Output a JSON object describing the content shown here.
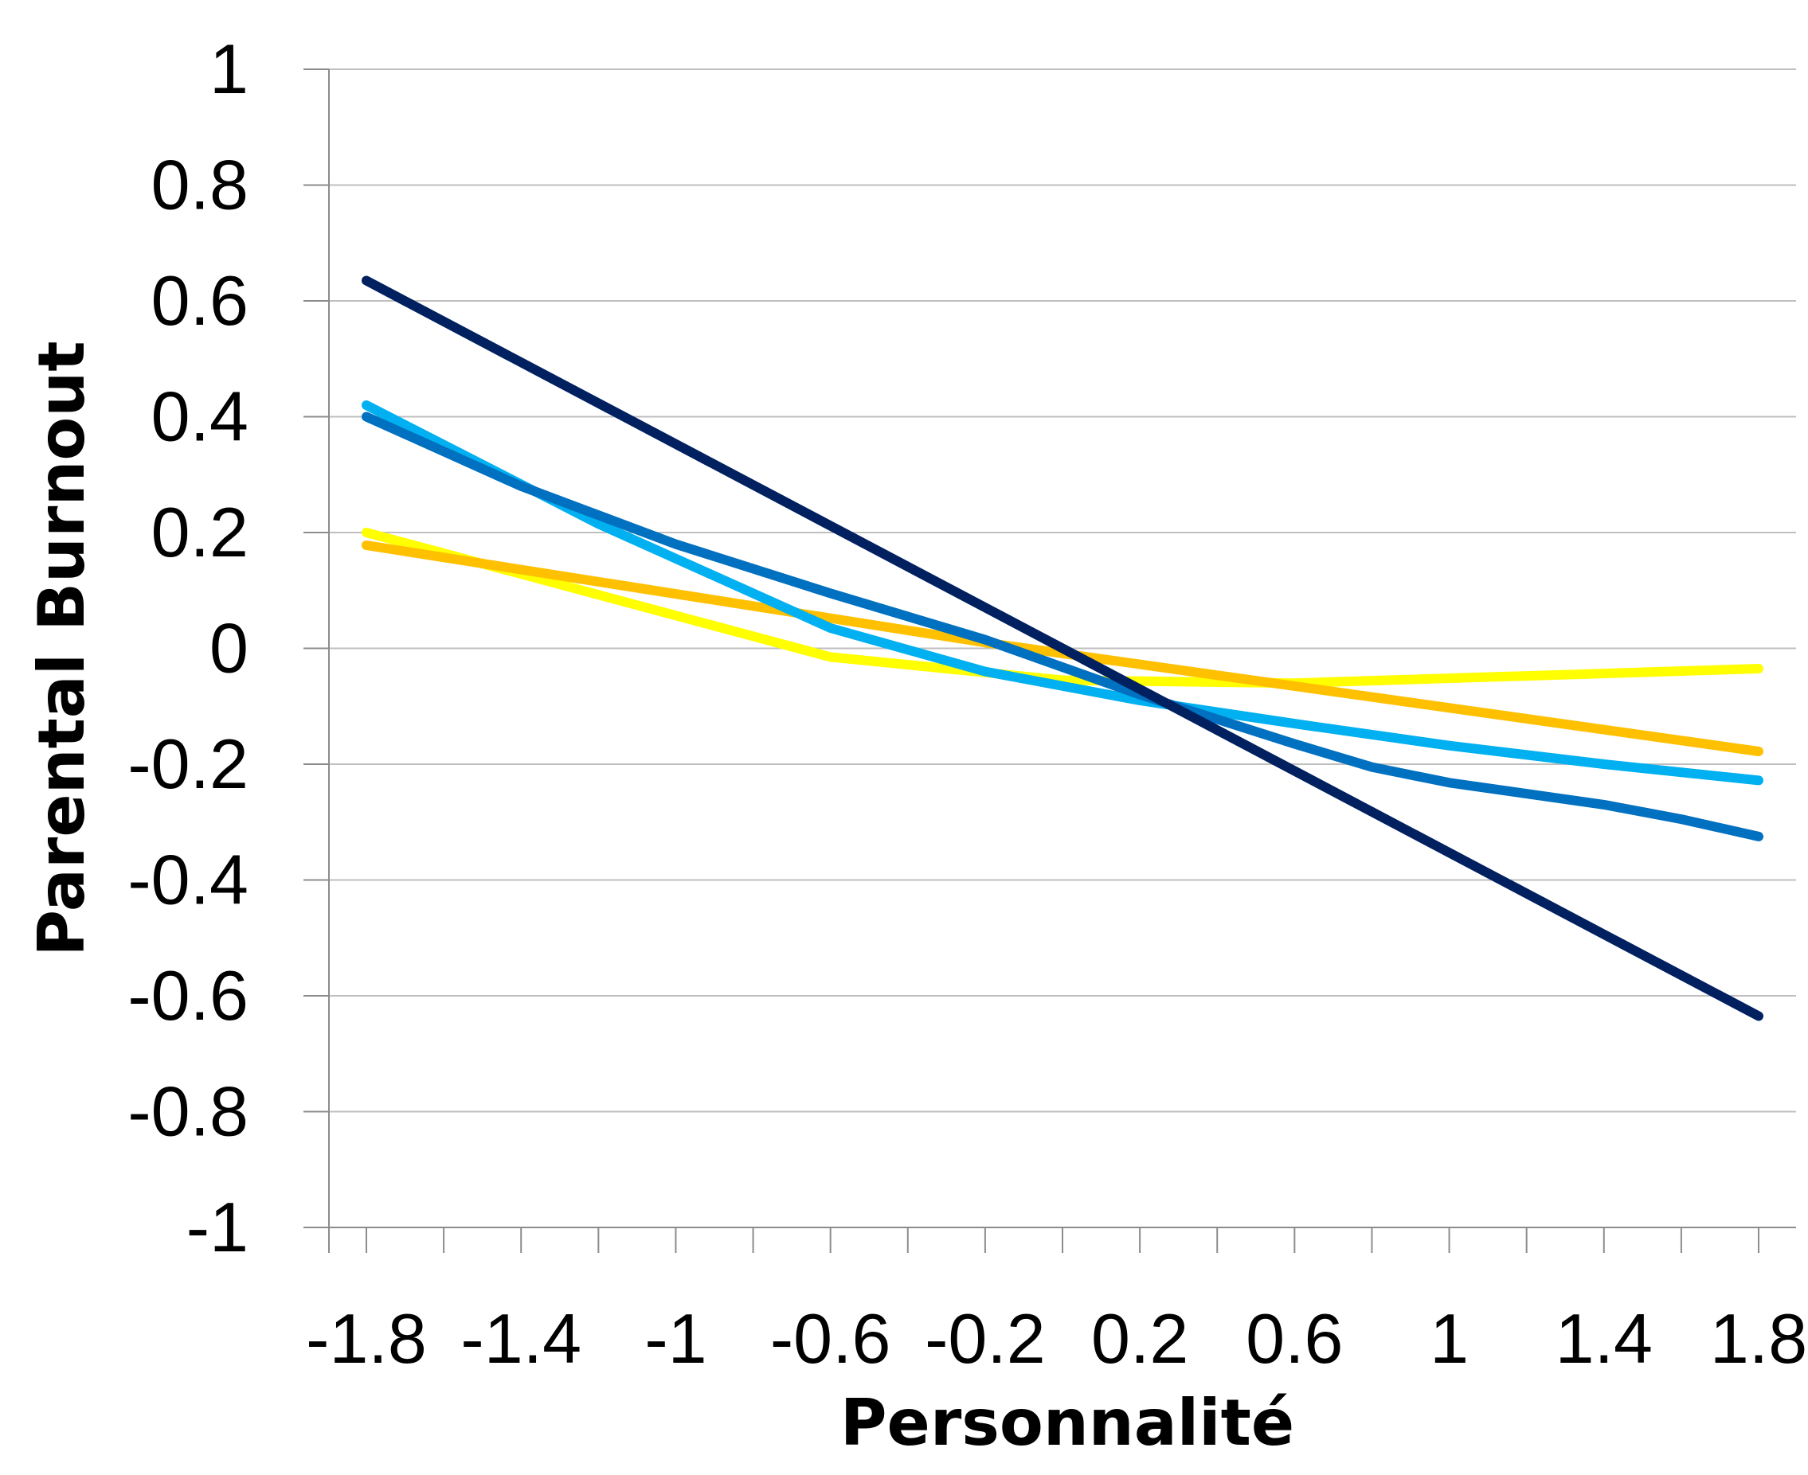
{
  "chart_data": {
    "type": "line",
    "xlabel": "Personnalité",
    "ylabel": "Parental Burnout",
    "xlim": [
      -1.8,
      1.8
    ],
    "ylim": [
      -1,
      1
    ],
    "x_ticks": [
      "-1.8",
      "-1.4",
      "-1",
      "-0.6",
      "-0.2",
      "0.2",
      "0.6",
      "1",
      "1.4",
      "1.8"
    ],
    "y_ticks": [
      "1",
      "0.8",
      "0.6",
      "0.4",
      "0.2",
      "0",
      "-0.2",
      "-0.4",
      "-0.6",
      "-0.8",
      "-1"
    ],
    "grid": true,
    "legend": "none",
    "series": [
      {
        "color": "#FFFF00",
        "points": [
          [
            -1.8,
            0.2
          ],
          [
            -0.6,
            -0.015
          ],
          [
            0.0,
            -0.055
          ],
          [
            0.6,
            -0.06
          ],
          [
            1.8,
            -0.035
          ]
        ]
      },
      {
        "color": "#FFC000",
        "points": [
          [
            -1.8,
            0.178
          ],
          [
            -0.2,
            0.01
          ],
          [
            1.8,
            -0.178
          ]
        ]
      },
      {
        "color": "#00B0F0",
        "points": [
          [
            -1.8,
            0.42
          ],
          [
            -1.2,
            0.215
          ],
          [
            -0.6,
            0.035
          ],
          [
            -0.2,
            -0.04
          ],
          [
            0.2,
            -0.09
          ],
          [
            0.6,
            -0.13
          ],
          [
            1.0,
            -0.168
          ],
          [
            1.4,
            -0.2
          ],
          [
            1.8,
            -0.228
          ]
        ]
      },
      {
        "color": "#0070C0",
        "points": [
          [
            -1.8,
            0.4
          ],
          [
            -1.4,
            0.28
          ],
          [
            -1.0,
            0.18
          ],
          [
            -0.6,
            0.095
          ],
          [
            -0.2,
            0.015
          ],
          [
            0.2,
            -0.08
          ],
          [
            0.6,
            -0.165
          ],
          [
            0.8,
            -0.205
          ],
          [
            1.0,
            -0.232
          ],
          [
            1.4,
            -0.27
          ],
          [
            1.6,
            -0.295
          ],
          [
            1.8,
            -0.325
          ]
        ]
      },
      {
        "color": "#002060",
        "points": [
          [
            -1.8,
            0.635
          ],
          [
            1.8,
            -0.635
          ]
        ]
      }
    ]
  }
}
